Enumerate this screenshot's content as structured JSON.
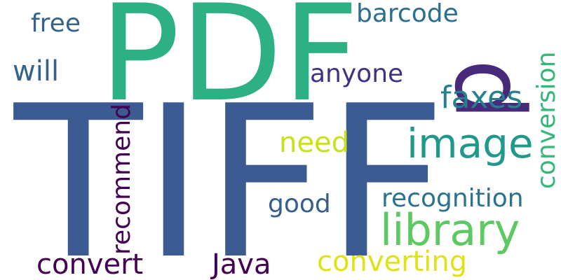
{
  "words": [
    {
      "text": "TIFF",
      "color": "#3b5b92",
      "orientation": "horizontal"
    },
    {
      "text": "PDF",
      "color": "#2db083",
      "orientation": "horizontal"
    },
    {
      "text": "p",
      "color": "#472a7a",
      "orientation": "vertical"
    },
    {
      "text": "image",
      "color": "#1f9a8a",
      "orientation": "horizontal"
    },
    {
      "text": "library",
      "color": "#5ec962",
      "orientation": "horizontal"
    },
    {
      "text": "barcode",
      "color": "#2a6f8f",
      "orientation": "horizontal"
    },
    {
      "text": "free",
      "color": "#33638d",
      "orientation": "horizontal"
    },
    {
      "text": "will",
      "color": "#33638d",
      "orientation": "horizontal"
    },
    {
      "text": "anyone",
      "color": "#3e3383",
      "orientation": "horizontal"
    },
    {
      "text": "faxes",
      "color": "#277f8e",
      "orientation": "horizontal"
    },
    {
      "text": "conversion",
      "color": "#35b779",
      "orientation": "vertical"
    },
    {
      "text": "need",
      "color": "#c8e020",
      "orientation": "horizontal"
    },
    {
      "text": "recommend",
      "color": "#440154",
      "orientation": "vertical"
    },
    {
      "text": "recognition",
      "color": "#2c728e",
      "orientation": "horizontal"
    },
    {
      "text": "good",
      "color": "#355f8d",
      "orientation": "horizontal"
    },
    {
      "text": "convert",
      "color": "#440154",
      "orientation": "horizontal"
    },
    {
      "text": "Java",
      "color": "#440154",
      "orientation": "horizontal"
    },
    {
      "text": "converting",
      "color": "#dde318",
      "orientation": "horizontal"
    }
  ]
}
